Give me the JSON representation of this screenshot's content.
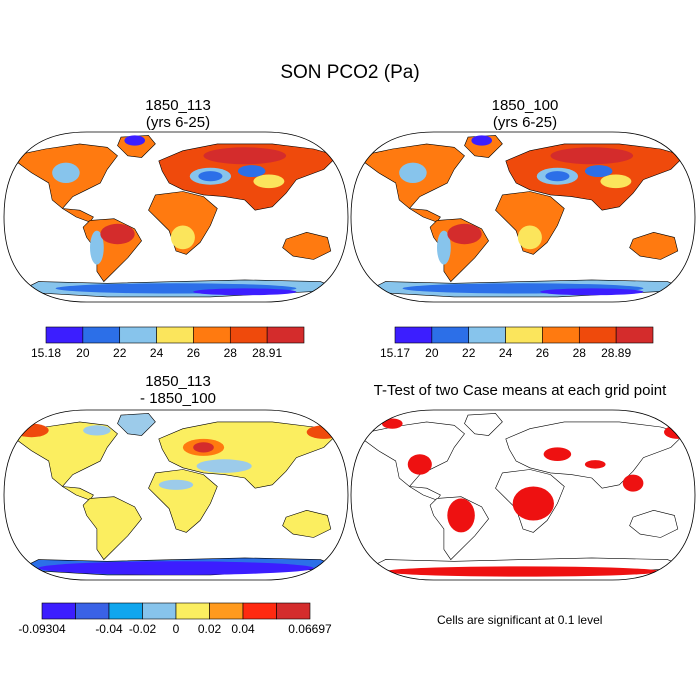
{
  "title": "SON PCO2 (Pa)",
  "panels": [
    {
      "id": "p1",
      "title_lines": [
        "1850_113",
        "(yrs 6-25)"
      ]
    },
    {
      "id": "p2",
      "title_lines": [
        "1850_100",
        "(yrs 6-25)"
      ]
    },
    {
      "id": "p3",
      "title_lines": [
        "1850_113",
        "- 1850_100"
      ]
    },
    {
      "id": "p4",
      "title_lines": [
        "T-Test of two Case means at each grid point"
      ]
    }
  ],
  "note": "Cells are significant at 0.1 level",
  "chart_data": [
    {
      "type": "heatmap",
      "panel": "1850_113 (yrs 6-25)",
      "projection": "Robinson world map",
      "colorbar": {
        "boundaries": [
          15.18,
          20,
          22,
          24,
          26,
          28,
          28.91
        ],
        "tick_labels": [
          "15.18",
          "20",
          "22",
          "24",
          "26",
          "28",
          "28.91"
        ],
        "colors": [
          "#3c1eff",
          "#2c6fe8",
          "#87c4ec",
          "#fbe55c",
          "#ff7a10",
          "#ef4a0c",
          "#d42c2c"
        ]
      }
    },
    {
      "type": "heatmap",
      "panel": "1850_100 (yrs 6-25)",
      "projection": "Robinson world map",
      "colorbar": {
        "boundaries": [
          15.17,
          20,
          22,
          24,
          26,
          28,
          28.89
        ],
        "tick_labels": [
          "15.17",
          "20",
          "22",
          "24",
          "26",
          "28",
          "28.89"
        ],
        "colors": [
          "#3c1eff",
          "#2c6fe8",
          "#87c4ec",
          "#fbe55c",
          "#ff7a10",
          "#ef4a0c",
          "#d42c2c"
        ]
      }
    },
    {
      "type": "heatmap",
      "panel": "1850_113 - 1850_100",
      "projection": "Robinson world map",
      "colorbar": {
        "boundaries": [
          -0.09304,
          -0.06,
          -0.04,
          -0.02,
          0,
          0.02,
          0.04,
          0.06,
          0.06697
        ],
        "tick_labels": [
          "-0.09304",
          "-0.04",
          "-0.02",
          "0",
          "0.02",
          "0.04",
          "0.06697"
        ],
        "colors": [
          "#3c1eff",
          "#3a62e6",
          "#10a6ee",
          "#87c4ec",
          "#fbee60",
          "#ff9a1e",
          "#ff2a10",
          "#d42c2c"
        ]
      }
    },
    {
      "type": "heatmap",
      "panel": "T-Test of two Case means at each grid point",
      "projection": "Robinson world map",
      "significance_color": "#ee1111",
      "significance_level": 0.1
    }
  ],
  "colors": {
    "land_orange": "#ff7a10",
    "land_red": "#ef4a0c",
    "land_darkred": "#d42c2c",
    "land_yellow": "#fbe55c",
    "land_lightblue": "#87c4ec",
    "land_blue": "#2c6fe8",
    "land_violet": "#3c1eff",
    "diff_yellow": "#fbee60",
    "diff_lightblue": "#9ccbea",
    "sig_red": "#ee1111"
  }
}
